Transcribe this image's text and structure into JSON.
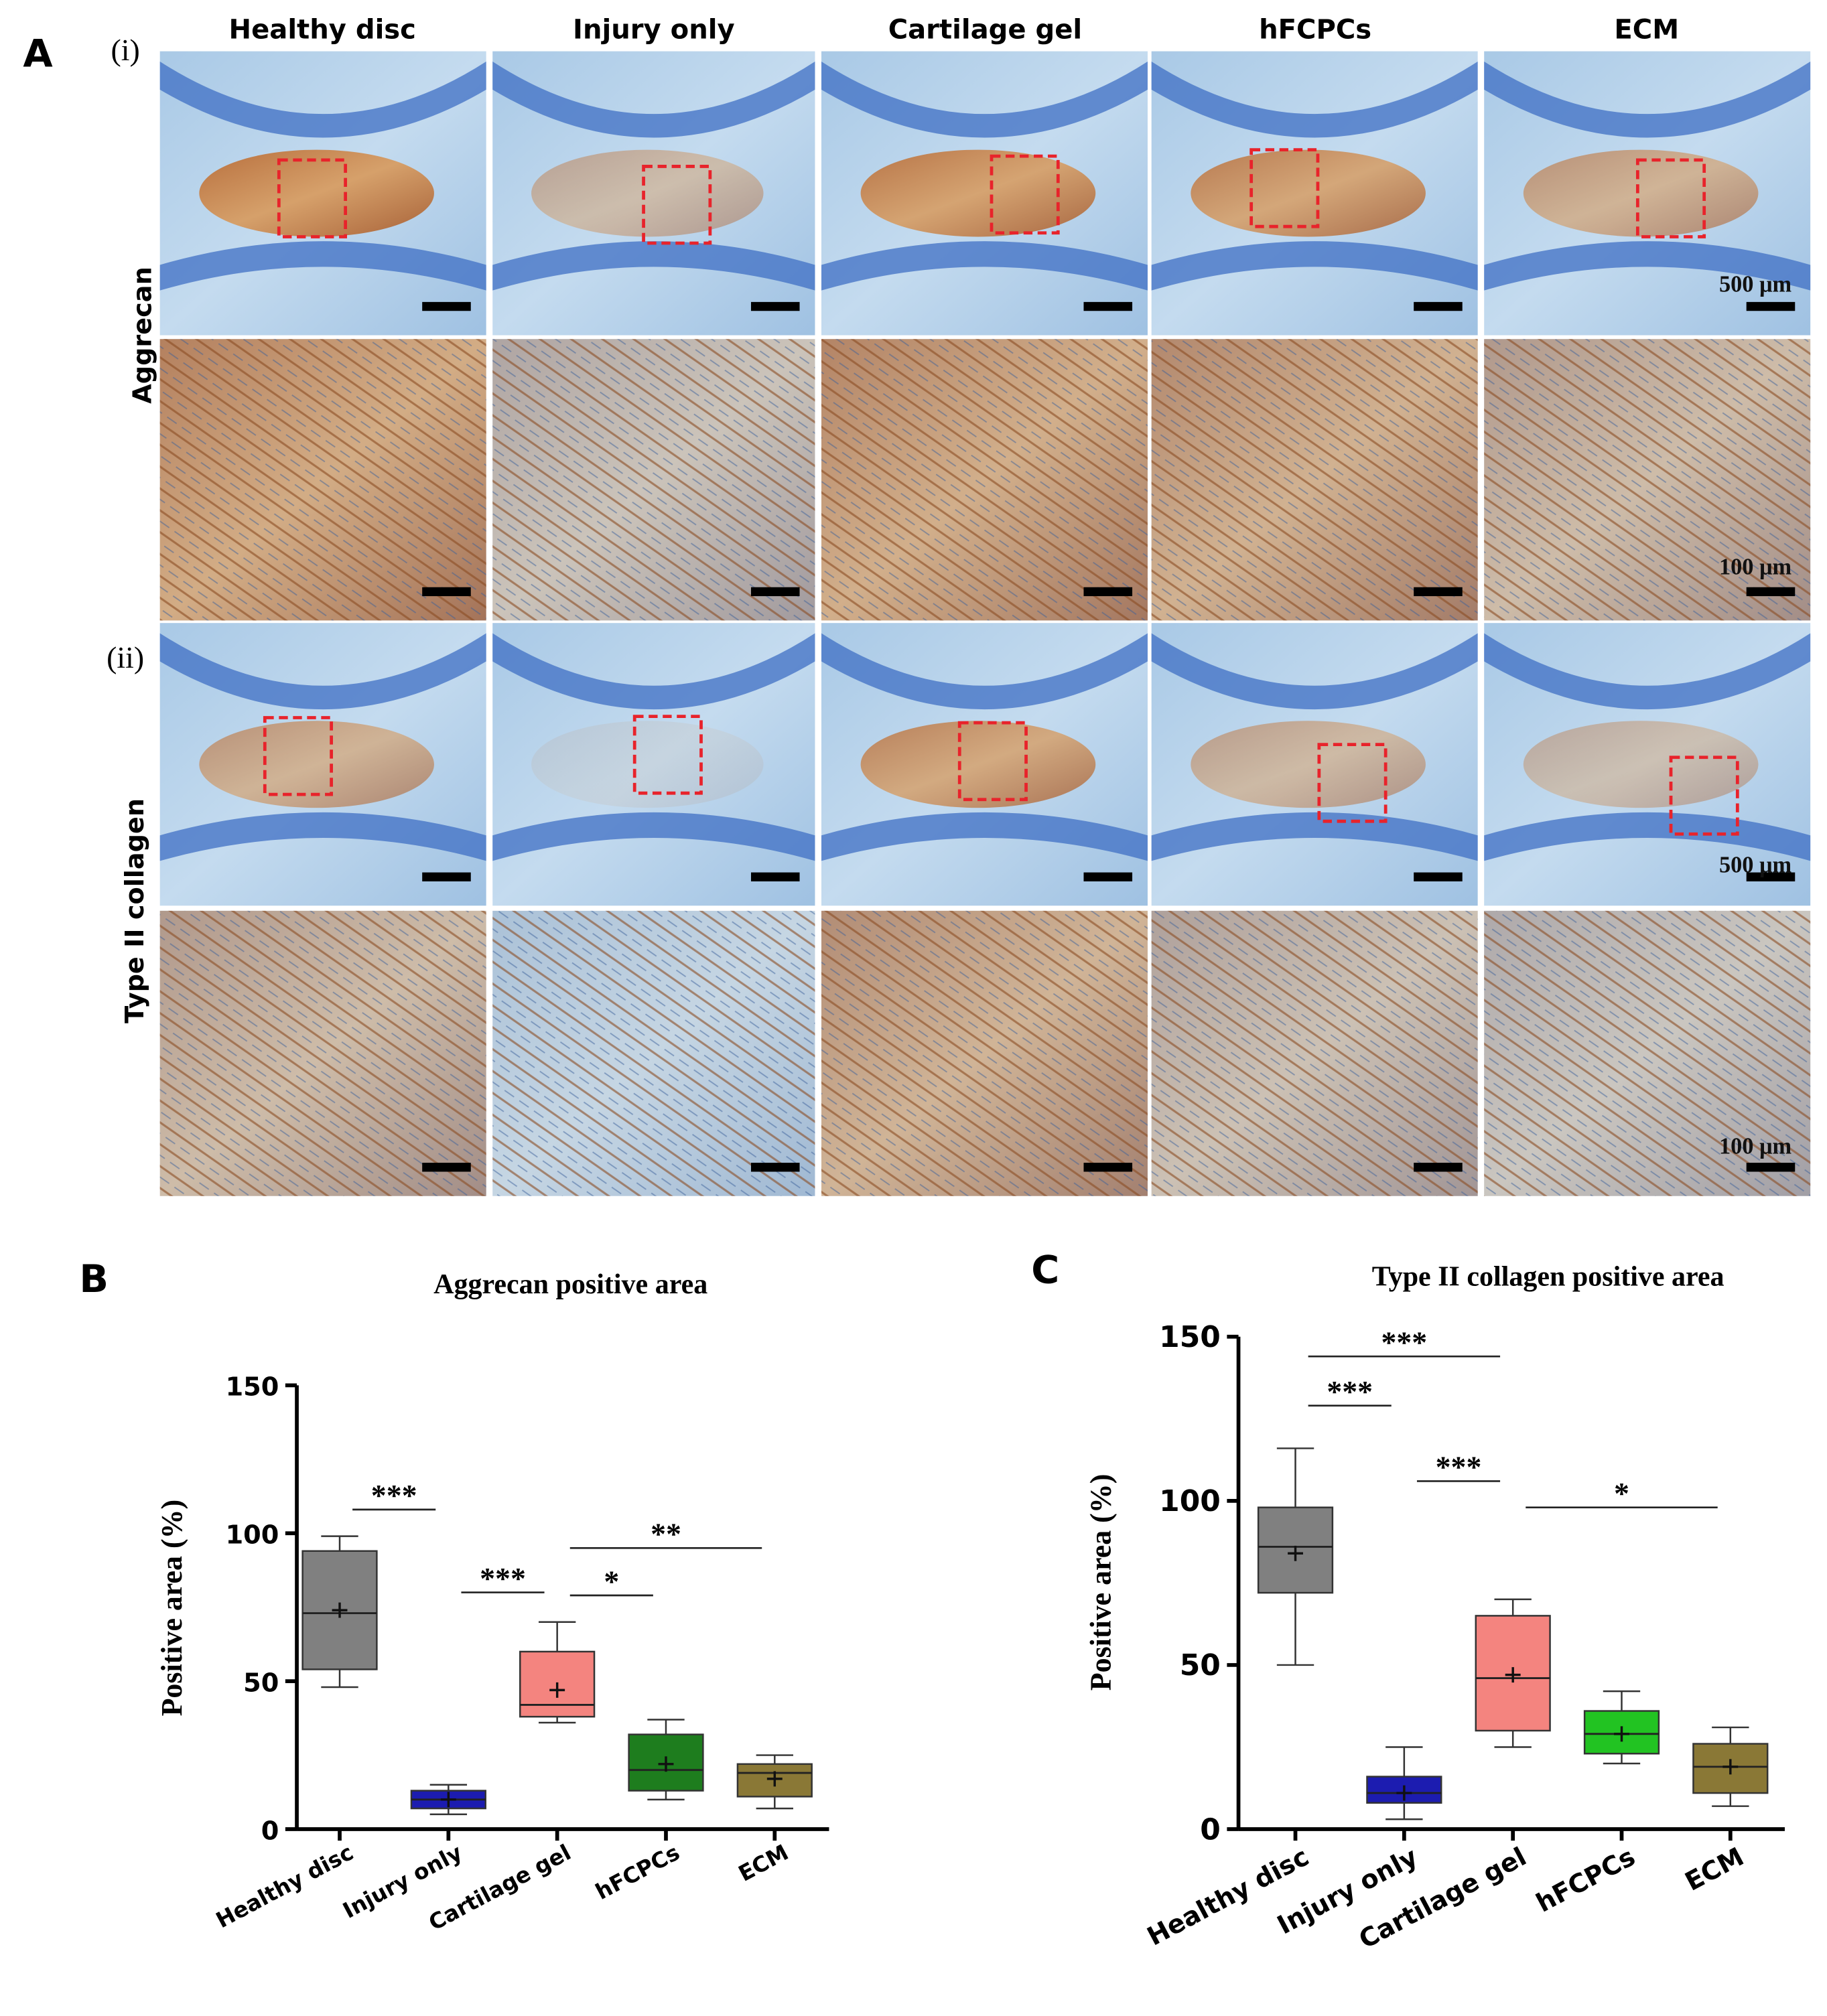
{
  "panel_a": {
    "letter": "A",
    "columns": [
      "Healthy disc",
      "Injury only",
      "Cartilage gel",
      "hFCPCs",
      "ECM"
    ],
    "sections": [
      "(i)",
      "(ii)"
    ],
    "rows": [
      "Aggrecan",
      "Type II collagen"
    ],
    "scale_labels": [
      "500 μm",
      "100 μm",
      "500 μm",
      "100 μm"
    ]
  },
  "chart_data": [
    {
      "type": "box",
      "panel": "B",
      "title": "Aggrecan positive area",
      "ylabel": "Positive area (%)",
      "categories": [
        "Healthy disc",
        "Injury only",
        "Cartilage gel",
        "hFCPCs",
        "ECM"
      ],
      "colors": [
        "#808080",
        "#1c1cb0",
        "#f4847f",
        "#1e7d1e",
        "#8a7836"
      ],
      "min": [
        48,
        5,
        36,
        10,
        7
      ],
      "q1": [
        54,
        7,
        38,
        13,
        11
      ],
      "median": [
        73,
        10,
        42,
        20,
        19
      ],
      "q3": [
        94,
        13,
        60,
        32,
        22
      ],
      "max": [
        99,
        15,
        70,
        37,
        25
      ],
      "mean": [
        74,
        10,
        47,
        22,
        17
      ],
      "ylim": [
        0,
        150
      ],
      "yticks": [
        0,
        50,
        100,
        150
      ],
      "annotations": [
        {
          "text": "***",
          "from": "Healthy disc",
          "to": "Injury only",
          "y": 108
        },
        {
          "text": "***",
          "from": "Injury only",
          "to": "Cartilage gel",
          "y": 80
        },
        {
          "text": "*",
          "from": "Cartilage gel",
          "to": "hFCPCs",
          "y": 79
        },
        {
          "text": "**",
          "from": "Cartilage gel",
          "to": "ECM",
          "y": 95
        }
      ]
    },
    {
      "type": "box",
      "panel": "C",
      "title": "Type II collagen positive area",
      "ylabel": "Positive area (%)",
      "categories": [
        "Healthy disc",
        "Injury only",
        "Cartilage gel",
        "hFCPCs",
        "ECM"
      ],
      "colors": [
        "#808080",
        "#1c1cb0",
        "#f4847f",
        "#22c322",
        "#8a7836"
      ],
      "min": [
        50,
        3,
        25,
        20,
        7
      ],
      "q1": [
        72,
        8,
        30,
        23,
        11
      ],
      "median": [
        86,
        11,
        46,
        29,
        19
      ],
      "q3": [
        98,
        16,
        65,
        36,
        26
      ],
      "max": [
        116,
        25,
        70,
        42,
        31
      ],
      "mean": [
        84,
        11,
        47,
        29,
        19
      ],
      "ylim": [
        0,
        150
      ],
      "yticks": [
        0,
        50,
        100,
        150
      ],
      "annotations": [
        {
          "text": "***",
          "from": "Healthy disc",
          "to": "Cartilage gel",
          "y": 144
        },
        {
          "text": "***",
          "from": "Healthy disc",
          "to": "Injury only",
          "y": 129
        },
        {
          "text": "***",
          "from": "Injury only",
          "to": "Cartilage gel",
          "y": 106
        },
        {
          "text": "*",
          "from": "Cartilage gel",
          "to": "ECM",
          "y": 98
        }
      ]
    }
  ]
}
